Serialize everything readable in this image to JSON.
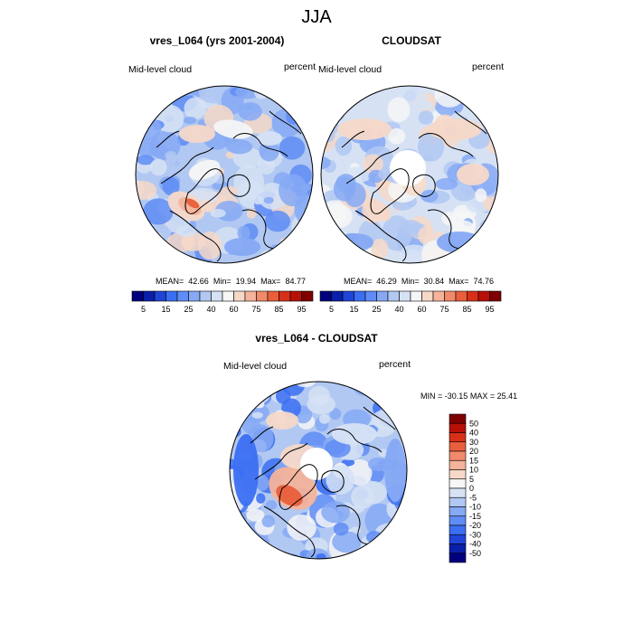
{
  "page_title": "JJA",
  "chart_data": [
    {
      "type": "heatmap",
      "projection": "polar-stereographic-north",
      "title": "vres_L064 (yrs 2001-2004)",
      "left_label": "Mid-level cloud",
      "right_label": "percent",
      "stats": {
        "mean_label": "MEAN=",
        "mean": "42.66",
        "min_label": "Min=",
        "min": "19.94",
        "max_label": "Max=",
        "max": "84.77"
      },
      "colorbar": {
        "levels": [
          5,
          10,
          15,
          20,
          25,
          30,
          40,
          50,
          60,
          70,
          75,
          80,
          85,
          90,
          95
        ],
        "tick_labels": [
          "5",
          "15",
          "25",
          "40",
          "60",
          "75",
          "85",
          "95"
        ],
        "colors": [
          "#00007f",
          "#0a1fa8",
          "#1f45d8",
          "#3b6ff2",
          "#5f8cf5",
          "#86a9f4",
          "#b1c8f2",
          "#d6e2f4",
          "#f6f6f6",
          "#f6d8c8",
          "#f4b39a",
          "#f08a6a",
          "#e95f3c",
          "#d83018",
          "#b81008",
          "#7f0000"
        ]
      }
    },
    {
      "type": "heatmap",
      "projection": "polar-stereographic-north",
      "title": "CLOUDSAT",
      "left_label": "Mid-level cloud",
      "right_label": "percent",
      "stats": {
        "mean_label": "MEAN=",
        "mean": "46.29",
        "min_label": "Min=",
        "min": "30.84",
        "max_label": "Max=",
        "max": "74.76"
      },
      "colorbar": {
        "levels": [
          5,
          10,
          15,
          20,
          25,
          30,
          40,
          50,
          60,
          70,
          75,
          80,
          85,
          90,
          95
        ],
        "tick_labels": [
          "5",
          "15",
          "25",
          "40",
          "60",
          "75",
          "85",
          "95"
        ],
        "colors": [
          "#00007f",
          "#0a1fa8",
          "#1f45d8",
          "#3b6ff2",
          "#5f8cf5",
          "#86a9f4",
          "#b1c8f2",
          "#d6e2f4",
          "#f6f6f6",
          "#f6d8c8",
          "#f4b39a",
          "#f08a6a",
          "#e95f3c",
          "#d83018",
          "#b81008",
          "#7f0000"
        ]
      }
    },
    {
      "type": "heatmap",
      "projection": "polar-stereographic-north",
      "title": "vres_L064 - CLOUDSAT",
      "left_label": "Mid-level cloud",
      "right_label": "percent",
      "stats": {
        "min_label": "MIN =",
        "min": "-30.15",
        "max_label": "MAX =",
        "max": "25.41"
      },
      "colorbar": {
        "levels": [
          50,
          40,
          30,
          20,
          15,
          10,
          5,
          0,
          -5,
          -10,
          -15,
          -20,
          -30,
          -40,
          -50
        ],
        "tick_labels": [
          "50",
          "40",
          "30",
          "20",
          "15",
          "10",
          "5",
          "0",
          "-5",
          "-10",
          "-15",
          "-20",
          "-30",
          "-40",
          "-50"
        ],
        "colors": [
          "#7f0000",
          "#b81008",
          "#d83018",
          "#e95f3c",
          "#f08a6a",
          "#f4b39a",
          "#f6d8c8",
          "#f6f6f6",
          "#d6e2f4",
          "#b1c8f2",
          "#86a9f4",
          "#5f8cf5",
          "#3b6ff2",
          "#1f45d8",
          "#0a1fa8",
          "#00007f"
        ]
      }
    }
  ]
}
